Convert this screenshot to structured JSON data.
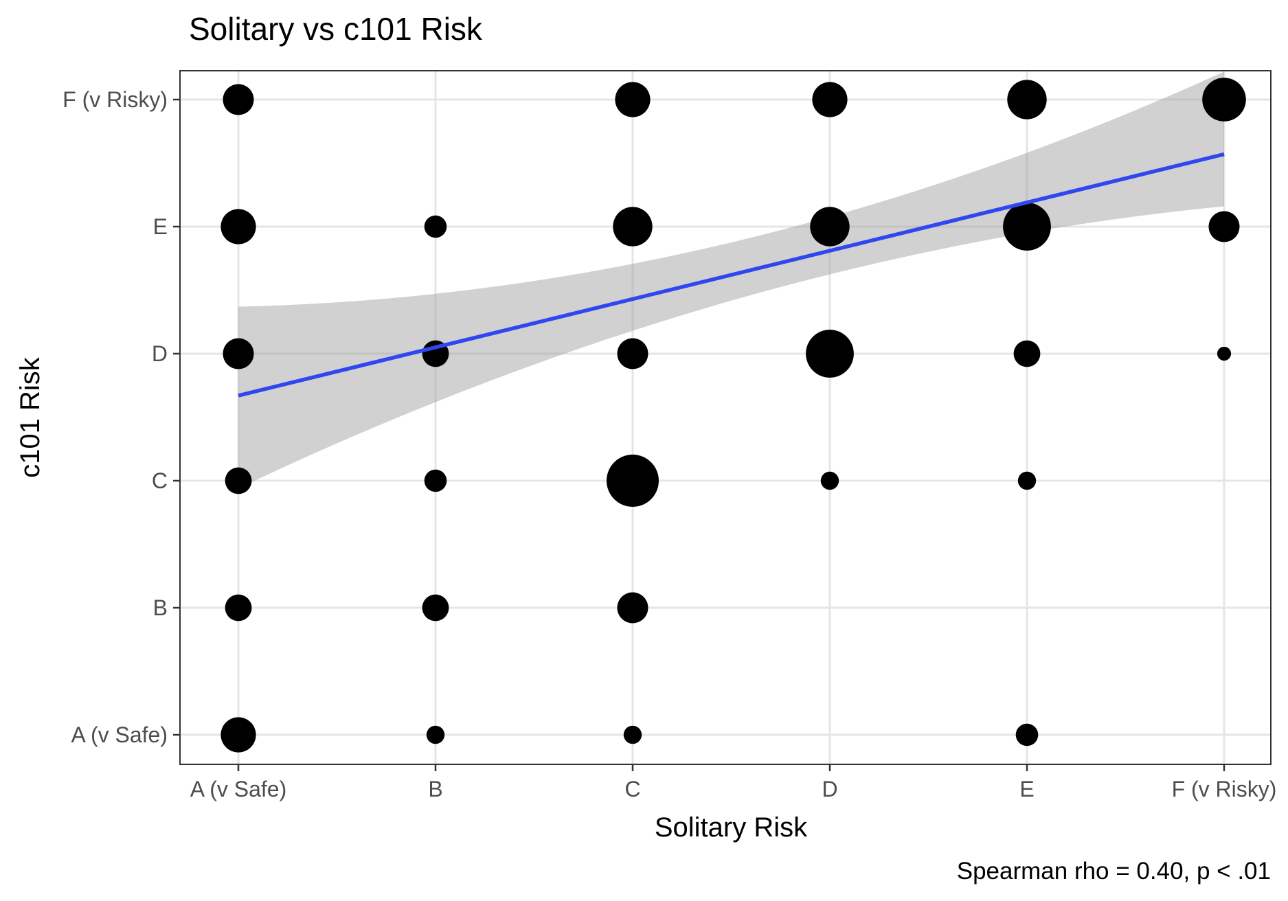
{
  "chart_data": {
    "type": "scatter",
    "title": "Solitary vs c101 Risk",
    "xlabel": "Solitary Risk",
    "ylabel": "c101 Risk",
    "caption": "Spearman rho = 0.40, p < .01",
    "x_categories": [
      "A (v Safe)",
      "B",
      "C",
      "D",
      "E",
      "F (v Risky)"
    ],
    "y_categories": [
      "A (v Safe)",
      "B",
      "C",
      "D",
      "E",
      "F (v Risky)"
    ],
    "grid": true,
    "legend": "none",
    "points": [
      {
        "x": "A (v Safe)",
        "y": "A (v Safe)",
        "size": 6
      },
      {
        "x": "B",
        "y": "A (v Safe)",
        "size": 2
      },
      {
        "x": "C",
        "y": "A (v Safe)",
        "size": 2
      },
      {
        "x": "E",
        "y": "A (v Safe)",
        "size": 3
      },
      {
        "x": "A (v Safe)",
        "y": "B",
        "size": 4
      },
      {
        "x": "B",
        "y": "B",
        "size": 4
      },
      {
        "x": "C",
        "y": "B",
        "size": 5
      },
      {
        "x": "A (v Safe)",
        "y": "C",
        "size": 4
      },
      {
        "x": "B",
        "y": "C",
        "size": 3
      },
      {
        "x": "C",
        "y": "C",
        "size": 10
      },
      {
        "x": "D",
        "y": "C",
        "size": 2
      },
      {
        "x": "E",
        "y": "C",
        "size": 2
      },
      {
        "x": "A (v Safe)",
        "y": "D",
        "size": 5
      },
      {
        "x": "B",
        "y": "D",
        "size": 4
      },
      {
        "x": "C",
        "y": "D",
        "size": 5
      },
      {
        "x": "D",
        "y": "D",
        "size": 9
      },
      {
        "x": "E",
        "y": "D",
        "size": 4
      },
      {
        "x": "F (v Risky)",
        "y": "D",
        "size": 1
      },
      {
        "x": "A (v Safe)",
        "y": "E",
        "size": 6
      },
      {
        "x": "B",
        "y": "E",
        "size": 3
      },
      {
        "x": "C",
        "y": "E",
        "size": 7
      },
      {
        "x": "D",
        "y": "E",
        "size": 7
      },
      {
        "x": "E",
        "y": "E",
        "size": 9
      },
      {
        "x": "F (v Risky)",
        "y": "E",
        "size": 5
      },
      {
        "x": "A (v Safe)",
        "y": "F (v Risky)",
        "size": 5
      },
      {
        "x": "C",
        "y": "F (v Risky)",
        "size": 6
      },
      {
        "x": "D",
        "y": "F (v Risky)",
        "size": 6
      },
      {
        "x": "E",
        "y": "F (v Risky)",
        "size": 7
      },
      {
        "x": "F (v Risky)",
        "y": "F (v Risky)",
        "size": 8
      }
    ],
    "trend_line": {
      "method": "linear",
      "x_index": [
        1,
        6
      ],
      "y_index": [
        3.67,
        5.57
      ],
      "ci_lower": [
        2.94,
        5.16
      ],
      "ci_upper": [
        4.37,
        6.22
      ],
      "color": "#3046f0",
      "band_color": "#999999"
    },
    "point_color": "#000000"
  }
}
